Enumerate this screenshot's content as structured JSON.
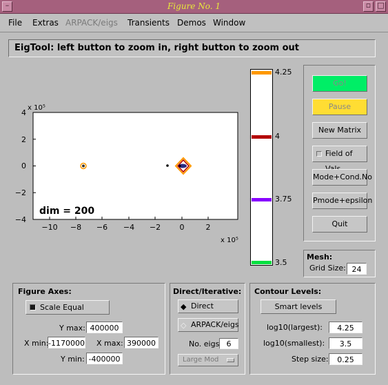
{
  "window": {
    "title": "Figure No. 1"
  },
  "menu": [
    "File",
    "Extras",
    "ARPACK/eigs",
    "Transients",
    "Demos",
    "Window"
  ],
  "header": {
    "text": "EigTool: left button to zoom in, right button to zoom out"
  },
  "plot": {
    "x_multiplier": "x 10⁵",
    "y_multiplier": "x 10⁵",
    "x_ticks": [
      "−10",
      "−8",
      "−6",
      "−4",
      "−2",
      "0",
      "2"
    ],
    "y_ticks": [
      "4",
      "2",
      "0",
      "−2",
      "−4"
    ],
    "annotation": "dim = 200"
  },
  "colorbar": {
    "labels": [
      "4.25",
      "4",
      "3.75",
      "3.5"
    ],
    "colors": [
      "#ff9900",
      "#b30000",
      "#8800ff",
      "#00e040"
    ]
  },
  "buttons": {
    "go": "Go!",
    "pause": "Pause",
    "new_matrix": "New Matrix",
    "field_of_vals": "Field of Vals.",
    "mode_cond": "Mode+Cond.No",
    "pmode_eps": "Pmode+epsilon",
    "quit": "Quit",
    "go_color": "#00ee66",
    "pause_color": "#ffdd33"
  },
  "mesh": {
    "title": "Mesh:",
    "grid_label": "Grid Size:",
    "grid_value": "24"
  },
  "figure_axes": {
    "title": "Figure Axes:",
    "scale_equal": "Scale Equal",
    "ymax_label": "Y max:",
    "ymax": "400000",
    "xmin_label": "X min:",
    "xmin": "-1170000",
    "xmax_label": "X max:",
    "xmax": "390000",
    "ymin_label": "Y min:",
    "ymin": "-400000"
  },
  "direct_iterative": {
    "title": "Direct/Iterative:",
    "direct": "Direct",
    "arpack": "ARPACK/eigs",
    "no_eigs_label": "No. eigs",
    "no_eigs": "6",
    "which": "Large Mod"
  },
  "contour_levels": {
    "title": "Contour Levels:",
    "smart_levels": "Smart  levels",
    "largest_label": "log10(largest):",
    "largest": "4.25",
    "smallest_label": "log10(smallest):",
    "smallest": "3.5",
    "step_label": "Step size:",
    "step": "0.25"
  }
}
